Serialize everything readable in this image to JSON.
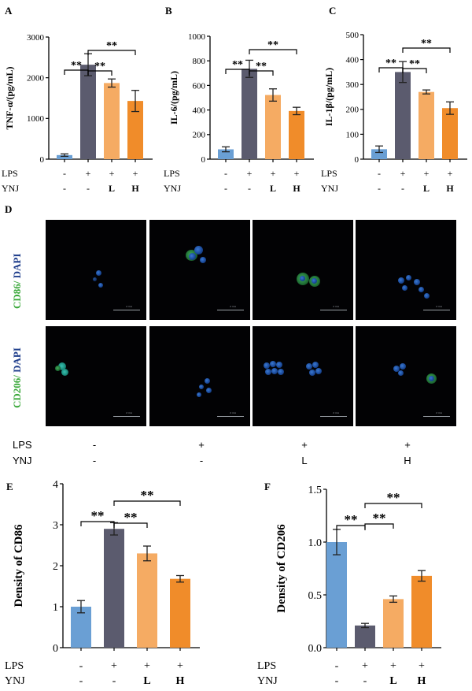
{
  "panels": {
    "A": "A",
    "B": "B",
    "C": "C",
    "D": "D",
    "E": "E",
    "F": "F"
  },
  "sig": "**",
  "micro": {
    "row1_label_a": "CD86/",
    "row1_label_b": "DAPI",
    "row2_label_a": "CD206/",
    "row2_label_b": "DAPI",
    "scale_text": "2 mA",
    "lps_label": "LPS",
    "ynj_label": "YNJ",
    "lps": [
      "-",
      "+",
      "+",
      "+"
    ],
    "ynj": [
      "-",
      "-",
      "L",
      "H"
    ]
  },
  "colors": {
    "blue": "#6a9fd4",
    "dark": "#5b5b6e",
    "light_orange": "#f5ab63",
    "orange": "#f08c2a",
    "green_text": "#3aa83a",
    "blue_text": "#1f3e8c"
  },
  "chart_data": [
    {
      "id": "A",
      "type": "bar",
      "ylabel": "TNF-α/(pg/mL)",
      "ylim": [
        0,
        3000
      ],
      "yticks": [
        "0",
        "1000",
        "2000",
        "3000"
      ],
      "values": [
        100,
        2320,
        1870,
        1430
      ],
      "errors": [
        30,
        270,
        100,
        260
      ],
      "lps_label": "LPS",
      "ynj_label": "YNJ",
      "lps": [
        "-",
        "+",
        "+",
        "+"
      ],
      "ynj": [
        "-",
        "-",
        "L",
        "H"
      ]
    },
    {
      "id": "B",
      "type": "bar",
      "ylabel": "IL-6/(pg/mL)",
      "ylim": [
        0,
        1000
      ],
      "yticks": [
        "0",
        "200",
        "400",
        "600",
        "800",
        "1000"
      ],
      "values": [
        80,
        735,
        522,
        392
      ],
      "errors": [
        20,
        70,
        50,
        30
      ],
      "lps_label": "LPS",
      "ynj_label": "YNJ",
      "lps": [
        "-",
        "+",
        "+",
        "+"
      ],
      "ynj": [
        "-",
        "-",
        "L",
        "H"
      ]
    },
    {
      "id": "C",
      "type": "bar",
      "ylabel": "IL-1β/(pg/mL)",
      "ylim": [
        0,
        500
      ],
      "yticks": [
        "0",
        "100",
        "200",
        "300",
        "400",
        "500"
      ],
      "values": [
        40,
        350,
        270,
        205
      ],
      "errors": [
        13,
        42,
        8,
        25
      ],
      "lps_label": "LPS",
      "ynj_label": "YNJ",
      "lps": [
        "-",
        "+",
        "+",
        "+"
      ],
      "ynj": [
        "-",
        "-",
        "L",
        "H"
      ]
    },
    {
      "id": "E",
      "type": "bar",
      "ylabel": "Density of CD86",
      "ylim": [
        0,
        4
      ],
      "yticks": [
        "0",
        "1",
        "2",
        "3",
        "4"
      ],
      "values": [
        1.0,
        2.9,
        2.3,
        1.68
      ],
      "errors": [
        0.15,
        0.15,
        0.18,
        0.08
      ],
      "lps_label": "LPS",
      "ynj_label": "YNJ",
      "lps": [
        "-",
        "+",
        "+",
        "+"
      ],
      "ynj": [
        "-",
        "-",
        "L",
        "H"
      ]
    },
    {
      "id": "F",
      "type": "bar",
      "ylabel": "Density of CD206",
      "ylim": [
        0,
        1.5
      ],
      "yticks": [
        "0.0",
        "0.5",
        "1.0",
        "1.5"
      ],
      "values": [
        1.0,
        0.21,
        0.46,
        0.68
      ],
      "errors": [
        0.12,
        0.02,
        0.03,
        0.05
      ],
      "lps_label": "LPS",
      "ynj_label": "YNJ",
      "lps": [
        "-",
        "+",
        "+",
        "+"
      ],
      "ynj": [
        "-",
        "-",
        "L",
        "H"
      ]
    }
  ]
}
